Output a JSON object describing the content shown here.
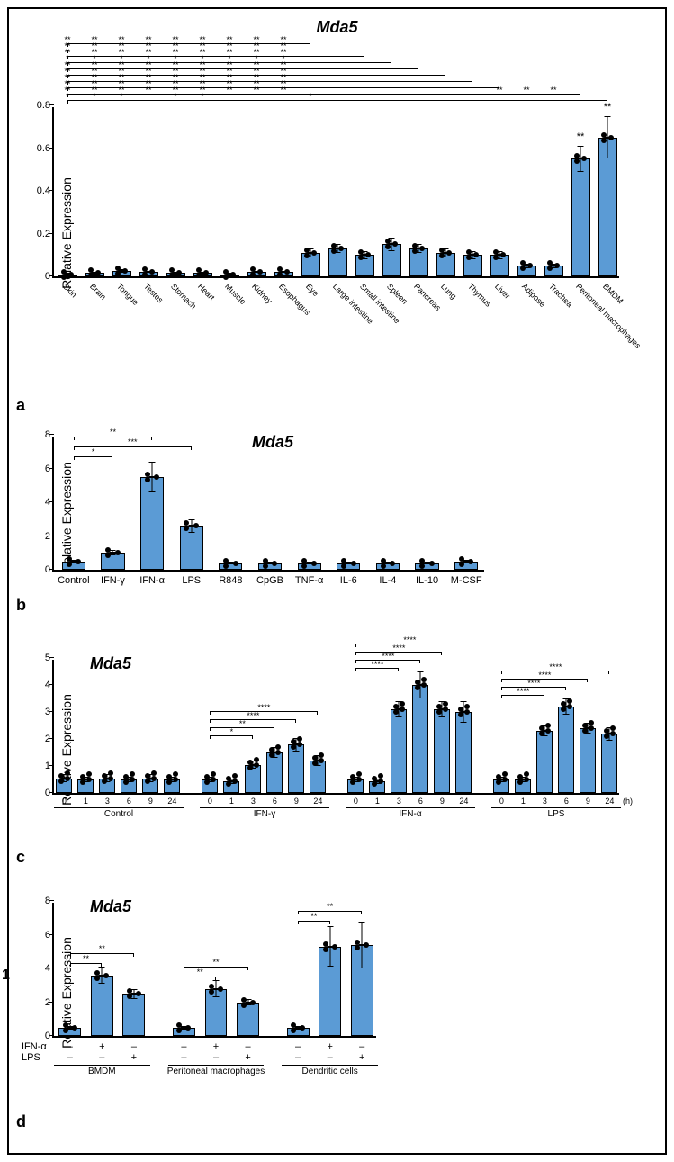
{
  "figure_number": "1",
  "gene_title": "Mda5",
  "y_axis_label": "Relative Expression",
  "bar_color": "#5b9bd5",
  "time_unit": "(h)",
  "panel_a": {
    "label": "a",
    "ylim": [
      0,
      0.8
    ],
    "yticks": [
      0,
      0.2,
      0.4,
      0.6,
      0.8
    ],
    "categories": [
      "Skin",
      "Brain",
      "Tongue",
      "Testes",
      "Stomach",
      "Heart",
      "Muscle",
      "Kidney",
      "Esophagus",
      "Eye",
      "Large intestine",
      "Small intestine",
      "Spleen",
      "Pancreas",
      "Lung",
      "Thymus",
      "Liver",
      "Adipose",
      "Trachea",
      "Peritoneal macrophages",
      "BMDM"
    ],
    "values": [
      0.01,
      0.015,
      0.025,
      0.02,
      0.015,
      0.015,
      0.01,
      0.02,
      0.02,
      0.11,
      0.13,
      0.1,
      0.15,
      0.13,
      0.11,
      0.1,
      0.1,
      0.05,
      0.05,
      0.55,
      0.65
    ],
    "errors": [
      0.005,
      0.005,
      0.008,
      0.005,
      0.005,
      0.005,
      0.005,
      0.005,
      0.005,
      0.02,
      0.02,
      0.02,
      0.03,
      0.02,
      0.02,
      0.02,
      0.02,
      0.01,
      0.01,
      0.06,
      0.1
    ],
    "top_stars": {
      "19": "**",
      "20": "**"
    },
    "sig_rows": [
      {
        "from": 0,
        "to": 20,
        "stars_at": [
          0,
          1,
          2,
          4,
          5,
          9
        ],
        "sym": "*"
      },
      {
        "from": 0,
        "to": 19,
        "stars_at": [
          0,
          1,
          2,
          3,
          4,
          5,
          6,
          7,
          8,
          16,
          17,
          18
        ],
        "sym": "**"
      },
      {
        "from": 0,
        "to": 16,
        "stars_at": [
          0,
          1,
          2,
          3,
          4,
          5,
          6,
          7,
          8
        ],
        "sym": "**"
      },
      {
        "from": 0,
        "to": 15,
        "stars_at": [
          0,
          1,
          2,
          3,
          4,
          5,
          6,
          7,
          8
        ],
        "sym": "**"
      },
      {
        "from": 0,
        "to": 14,
        "stars_at": [
          0,
          1,
          2,
          3,
          4,
          5,
          6,
          7,
          8
        ],
        "sym": "**"
      },
      {
        "from": 0,
        "to": 13,
        "stars_at": [
          0,
          1,
          2,
          3,
          4,
          5,
          6,
          7,
          8
        ],
        "sym": "**"
      },
      {
        "from": 0,
        "to": 12,
        "stars_at": [
          0,
          1,
          2,
          3,
          4,
          5,
          6,
          7,
          8
        ],
        "sym": "*"
      },
      {
        "from": 0,
        "to": 11,
        "stars_at": [
          0,
          1,
          2,
          3,
          4,
          5,
          6,
          7,
          8
        ],
        "sym": "**"
      },
      {
        "from": 0,
        "to": 10,
        "stars_at": [
          0,
          1,
          2,
          3,
          4,
          5,
          6,
          7,
          8
        ],
        "sym": "**"
      },
      {
        "from": 0,
        "to": 9,
        "stars_at": [
          0,
          1,
          2,
          3,
          4,
          5,
          6,
          7,
          8
        ],
        "sym": "**"
      }
    ]
  },
  "panel_b": {
    "label": "b",
    "ylim": [
      0,
      8
    ],
    "yticks": [
      0,
      2,
      4,
      6,
      8
    ],
    "categories": [
      "Control",
      "IFN-γ",
      "IFN-α",
      "LPS",
      "R848",
      "CpGB",
      "TNF-α",
      "IL-6",
      "IL-4",
      "IL-10",
      "M-CSF"
    ],
    "values": [
      0.5,
      1.0,
      5.5,
      2.6,
      0.4,
      0.4,
      0.4,
      0.4,
      0.4,
      0.4,
      0.5
    ],
    "errors": [
      0.1,
      0.15,
      0.9,
      0.4,
      0.1,
      0.1,
      0.1,
      0.1,
      0.1,
      0.1,
      0.1
    ],
    "sig": [
      {
        "to": 1,
        "sym": "*",
        "level": 0
      },
      {
        "to": 2,
        "sym": "**",
        "level": 2
      },
      {
        "to": 3,
        "sym": "***",
        "level": 1
      }
    ]
  },
  "panel_c": {
    "label": "c",
    "ylim": [
      0,
      5
    ],
    "yticks": [
      0,
      1,
      2,
      3,
      4,
      5
    ],
    "groups": [
      "Control",
      "IFN-γ",
      "IFN-α",
      "LPS"
    ],
    "timepoints": [
      "0",
      "1",
      "3",
      "6",
      "9",
      "24"
    ],
    "values": [
      [
        0.55,
        0.5,
        0.55,
        0.5,
        0.55,
        0.5
      ],
      [
        0.5,
        0.45,
        1.05,
        1.5,
        1.8,
        1.2
      ],
      [
        0.5,
        0.45,
        3.1,
        4.0,
        3.1,
        3.0
      ],
      [
        0.5,
        0.5,
        2.3,
        3.2,
        2.4,
        2.2
      ]
    ],
    "errors": [
      [
        0.15,
        0.1,
        0.15,
        0.1,
        0.15,
        0.1
      ],
      [
        0.1,
        0.1,
        0.15,
        0.2,
        0.25,
        0.2
      ],
      [
        0.1,
        0.1,
        0.3,
        0.5,
        0.3,
        0.4
      ],
      [
        0.1,
        0.1,
        0.2,
        0.3,
        0.2,
        0.25
      ]
    ],
    "sig": {
      "1": [
        {
          "to": 2,
          "sym": "*"
        },
        {
          "to": 3,
          "sym": "**"
        },
        {
          "to": 4,
          "sym": "****"
        },
        {
          "to": 5,
          "sym": "****"
        }
      ],
      "2": [
        {
          "to": 2,
          "sym": "****"
        },
        {
          "to": 3,
          "sym": "****"
        },
        {
          "to": 4,
          "sym": "****"
        },
        {
          "to": 5,
          "sym": "****"
        }
      ],
      "3": [
        {
          "to": 2,
          "sym": "****"
        },
        {
          "to": 3,
          "sym": "****"
        },
        {
          "to": 4,
          "sym": "****"
        },
        {
          "to": 5,
          "sym": "****"
        }
      ]
    }
  },
  "panel_d": {
    "label": "d",
    "ylim": [
      0,
      8
    ],
    "yticks": [
      0,
      2,
      4,
      6,
      8
    ],
    "groups": [
      "BMDM",
      "Peritoneal macrophages",
      "Dendritic cells"
    ],
    "treatments": [
      "IFN-α",
      "LPS"
    ],
    "treat_matrix": [
      [
        "–",
        "–"
      ],
      [
        "+",
        "–"
      ],
      [
        "–",
        "+"
      ]
    ],
    "values": [
      [
        0.5,
        3.6,
        2.5
      ],
      [
        0.5,
        2.8,
        2.0
      ],
      [
        0.5,
        5.3,
        5.4
      ]
    ],
    "errors": [
      [
        0.1,
        0.5,
        0.3
      ],
      [
        0.1,
        0.5,
        0.2
      ],
      [
        0.1,
        1.2,
        1.4
      ]
    ],
    "sig": [
      {
        "grp": 0,
        "to": 1,
        "sym": "**"
      },
      {
        "grp": 0,
        "to": 2,
        "sym": "**"
      },
      {
        "grp": 1,
        "to": 1,
        "sym": "**"
      },
      {
        "grp": 1,
        "to": 2,
        "sym": "**"
      },
      {
        "grp": 2,
        "to": 1,
        "sym": "**"
      },
      {
        "grp": 2,
        "to": 2,
        "sym": "**"
      }
    ]
  }
}
